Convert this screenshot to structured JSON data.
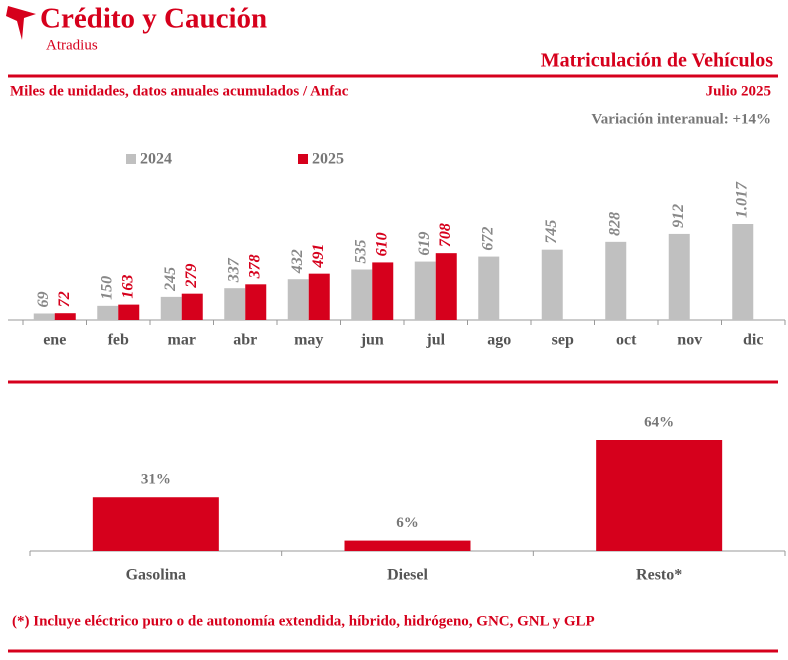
{
  "header": {
    "brand": "Crédito y Caución",
    "sub_brand": "Atradius",
    "title": "Matriculación de Vehículos",
    "subtitle": "Miles de unidades, datos anuales acumulados / Anfac",
    "date": "Julio 2025",
    "note": "Variación interanual: +14%"
  },
  "footnote": "(*) Incluye eléctrico puro o de autonomía extendida, híbrido, hidrógeno, GNC, GNL y GLP",
  "chart_data": [
    {
      "type": "bar",
      "categories": [
        "ene",
        "feb",
        "mar",
        "abr",
        "may",
        "jun",
        "jul",
        "ago",
        "sep",
        "oct",
        "nov",
        "dic"
      ],
      "series": [
        {
          "name": "2024",
          "color": "#c0c0c0",
          "values": [
            69,
            150,
            245,
            337,
            432,
            535,
            619,
            672,
            745,
            828,
            912,
            1017
          ],
          "value_labels": [
            "69",
            "150",
            "245",
            "337",
            "432",
            "535",
            "619",
            "672",
            "745",
            "828",
            "912",
            "1.017"
          ]
        },
        {
          "name": "2025",
          "color": "#d6001c",
          "values": [
            72,
            163,
            279,
            378,
            491,
            610,
            708,
            null,
            null,
            null,
            null,
            null
          ]
        }
      ]
    },
    {
      "type": "bar",
      "categories": [
        "Gasolina",
        "Diesel",
        "Resto*"
      ],
      "values": [
        31,
        6,
        64
      ],
      "value_labels": [
        "31%",
        "6%",
        "64%"
      ],
      "color": "#d6001c"
    }
  ]
}
